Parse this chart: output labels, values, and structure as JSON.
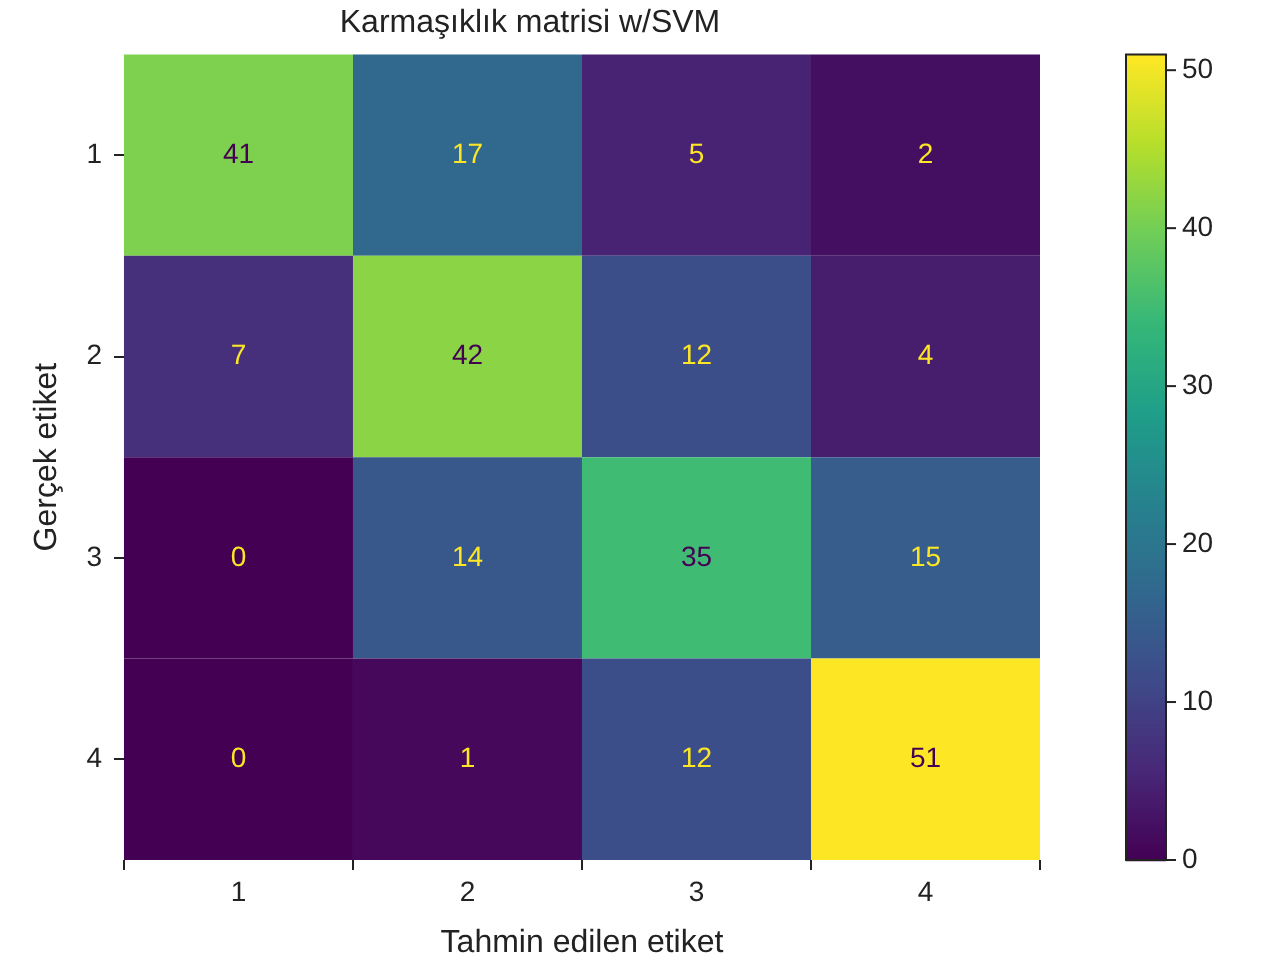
{
  "chart_data": {
    "type": "heatmap",
    "title": "Karmaşıklık matrisi w/SVM",
    "xlabel": "Tahmin edilen etiket",
    "ylabel": "Gerçek etiket",
    "categories": [
      "1",
      "2",
      "3",
      "4"
    ],
    "y_categories": [
      "1",
      "2",
      "3",
      "4"
    ],
    "cells": [
      [
        41,
        17,
        5,
        2
      ],
      [
        7,
        42,
        12,
        4
      ],
      [
        0,
        14,
        35,
        15
      ],
      [
        0,
        1,
        12,
        51
      ]
    ],
    "data_labels": true,
    "clim": [
      0,
      51
    ],
    "cticks": [
      0,
      10,
      20,
      30,
      40,
      50
    ]
  }
}
